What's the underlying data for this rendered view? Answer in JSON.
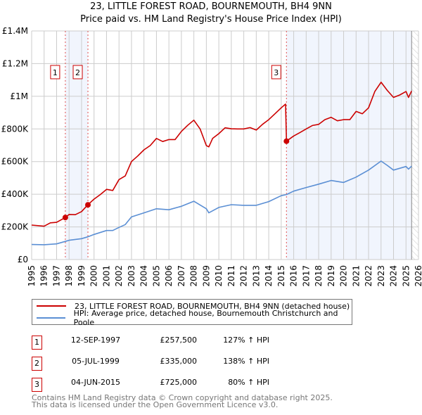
{
  "title": "23, LITTLE FOREST ROAD, BOURNEMOUTH, BH4 9NN",
  "subtitle": "Price paid vs. HM Land Registry's House Price Index (HPI)",
  "chart_data": {
    "type": "line",
    "title": "23, LITTLE FOREST ROAD, BOURNEMOUTH, BH4 9NN — Price paid vs. HM Land Registry's House Price Index (HPI)",
    "xlabel": "",
    "ylabel": "",
    "xlim": [
      1995,
      2026
    ],
    "ylim": [
      0,
      1400000
    ],
    "grid": true,
    "x_ticks": [
      "1995",
      "1996",
      "1997",
      "1998",
      "1999",
      "2000",
      "2001",
      "2002",
      "2003",
      "2004",
      "2005",
      "2006",
      "2007",
      "2008",
      "2009",
      "2010",
      "2011",
      "2012",
      "2013",
      "2014",
      "2015",
      "2016",
      "2017",
      "2018",
      "2019",
      "2020",
      "2021",
      "2022",
      "2023",
      "2024",
      "2025",
      "2026"
    ],
    "y_ticks": [
      {
        "v": 0,
        "label": "£0"
      },
      {
        "v": 200000,
        "label": "£200K"
      },
      {
        "v": 400000,
        "label": "£400K"
      },
      {
        "v": 600000,
        "label": "£600K"
      },
      {
        "v": 800000,
        "label": "£800K"
      },
      {
        "v": 1000000,
        "label": "£1M"
      },
      {
        "v": 1200000,
        "label": "£1.2M"
      },
      {
        "v": 1400000,
        "label": "£1.4M"
      }
    ],
    "series": [
      {
        "name": "23, LITTLE FOREST ROAD, BOURNEMOUTH, BH4 9NN (detached house)",
        "color": "#cc0000",
        "x": [
          1995,
          1996,
          1996.5,
          1997,
          1997.7,
          1998,
          1998.5,
          1999,
          1999.5,
          2000,
          2000.5,
          2001,
          2001.5,
          2002,
          2002.5,
          2003,
          2003.5,
          2004,
          2004.5,
          2005,
          2005.5,
          2006,
          2006.5,
          2007,
          2007.5,
          2008,
          2008.5,
          2009,
          2009.2,
          2009.5,
          2010,
          2010.5,
          2011,
          2011.5,
          2012,
          2012.5,
          2013,
          2013.5,
          2014,
          2014.5,
          2015,
          2015.35,
          2015.42,
          2016,
          2016.5,
          2017,
          2017.5,
          2018,
          2018.5,
          2019,
          2019.5,
          2020,
          2020.5,
          2021,
          2021.5,
          2022,
          2022.5,
          2023,
          2023.5,
          2024,
          2024.5,
          2025,
          2025.2,
          2025.45
        ],
        "y": [
          211000,
          204000,
          225000,
          228000,
          257500,
          276000,
          275000,
          294000,
          335000,
          370000,
          398000,
          430000,
          423000,
          490000,
          512000,
          600000,
          634000,
          672000,
          698000,
          742000,
          723000,
          735000,
          735000,
          785000,
          822000,
          854000,
          800000,
          698000,
          690000,
          742000,
          771000,
          807000,
          801000,
          800000,
          800000,
          808000,
          793000,
          828000,
          857000,
          893000,
          929000,
          952000,
          725000,
          757000,
          778000,
          800000,
          821000,
          828000,
          857000,
          871000,
          850000,
          857000,
          857000,
          907000,
          893000,
          929000,
          1029000,
          1086000,
          1036000,
          993000,
          1008000,
          1029000,
          993000,
          1032000
        ]
      },
      {
        "name": "HPI: Average price, detached house, Bournemouth Christchurch and Poole",
        "color": "#5b8fd4",
        "x": [
          1995,
          1996,
          1997,
          1997.7,
          1998,
          1999,
          1999.5,
          2000,
          2001,
          2001.5,
          2002,
          2002.5,
          2003,
          2004,
          2005,
          2006,
          2007,
          2008,
          2009,
          2009.2,
          2010,
          2011,
          2012,
          2013,
          2014,
          2015,
          2015.42,
          2016,
          2017,
          2018,
          2019,
          2020,
          2021,
          2022,
          2023,
          2023.5,
          2024,
          2025,
          2025.2,
          2025.45
        ],
        "y": [
          92000,
          91000,
          96000,
          111000,
          118000,
          128000,
          139000,
          154000,
          178000,
          178000,
          197000,
          214000,
          261000,
          286000,
          311000,
          305000,
          326000,
          357000,
          311000,
          286000,
          319000,
          336000,
          332000,
          332000,
          355000,
          391000,
          398000,
          419000,
          441000,
          462000,
          484000,
          472000,
          505000,
          548000,
          603000,
          577000,
          548000,
          570000,
          554000,
          572000
        ]
      }
    ],
    "sales": [
      {
        "id": "1",
        "x": 1997.7,
        "price": 257500,
        "date": "12-SEP-1997",
        "price_label": "£257,500",
        "hpi": "127% ↑ HPI"
      },
      {
        "id": "2",
        "x": 1999.51,
        "price": 335000,
        "date": "05-JUL-1999",
        "price_label": "£335,000",
        "hpi": "138% ↑ HPI"
      },
      {
        "id": "3",
        "x": 2015.42,
        "price": 725000,
        "date": "04-JUN-2015",
        "price_label": "£725,000",
        "hpi": "80% ↑ HPI"
      }
    ],
    "shaded_ranges": [
      [
        1997.7,
        1999.51
      ],
      [
        2015.42,
        2025.45
      ]
    ],
    "data_end": 2025.45,
    "legend_position": "below"
  },
  "legend": {
    "red_label": "23, LITTLE FOREST ROAD, BOURNEMOUTH, BH4 9NN (detached house)",
    "blue_label": "HPI: Average price, detached house, Bournemouth Christchurch and Poole"
  },
  "footer": {
    "line1": "Contains HM Land Registry data © Crown copyright and database right 2025.",
    "line2": "This data is licensed under the Open Government Licence v3.0."
  }
}
